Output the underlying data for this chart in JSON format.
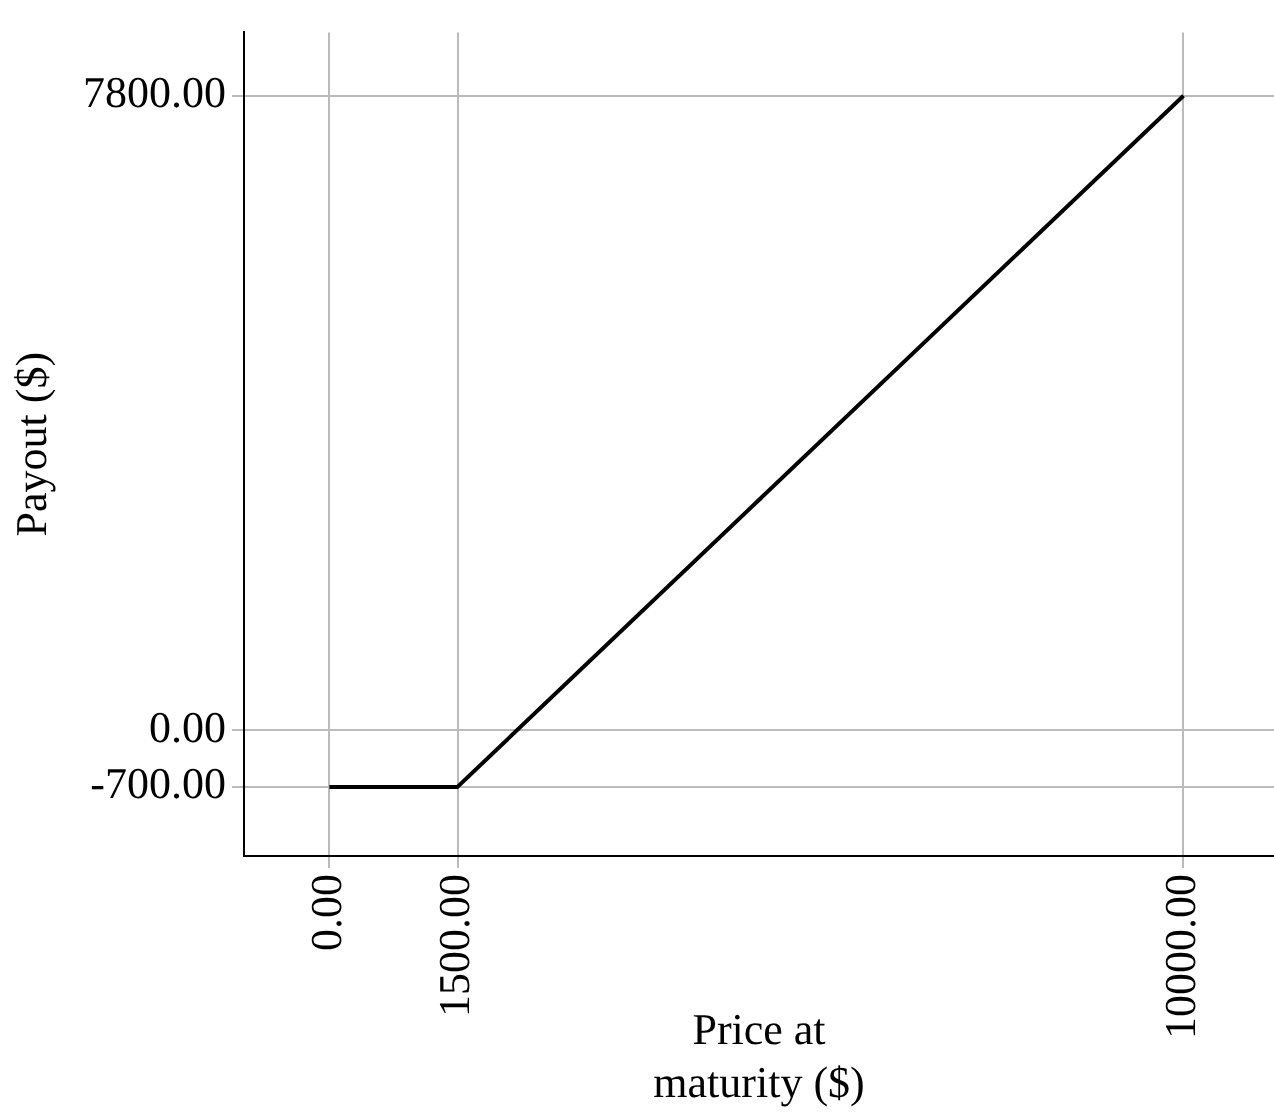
{
  "chart_data": {
    "type": "line",
    "xlabel": "Price at maturity ($)",
    "ylabel": "Payout ($)",
    "x": [
      0,
      1500,
      10000
    ],
    "series": [
      {
        "color": "#000000",
        "values": [
          -700,
          -700,
          7800
        ]
      }
    ],
    "xlim": [
      -1000,
      11060
    ],
    "ylim": [
      -1550,
      8580
    ],
    "xticks": [
      {
        "value": 0,
        "label": "0.00"
      },
      {
        "value": 1500,
        "label": "1500.00"
      },
      {
        "value": 10000,
        "label": "10000.00"
      }
    ],
    "yticks": [
      {
        "value": -700,
        "label": "-700.00"
      },
      {
        "value": 0,
        "label": "0.00"
      },
      {
        "value": 7800,
        "label": "7800.00"
      }
    ],
    "grid": true,
    "legend": false,
    "marker": "none",
    "line_style": "solid"
  }
}
